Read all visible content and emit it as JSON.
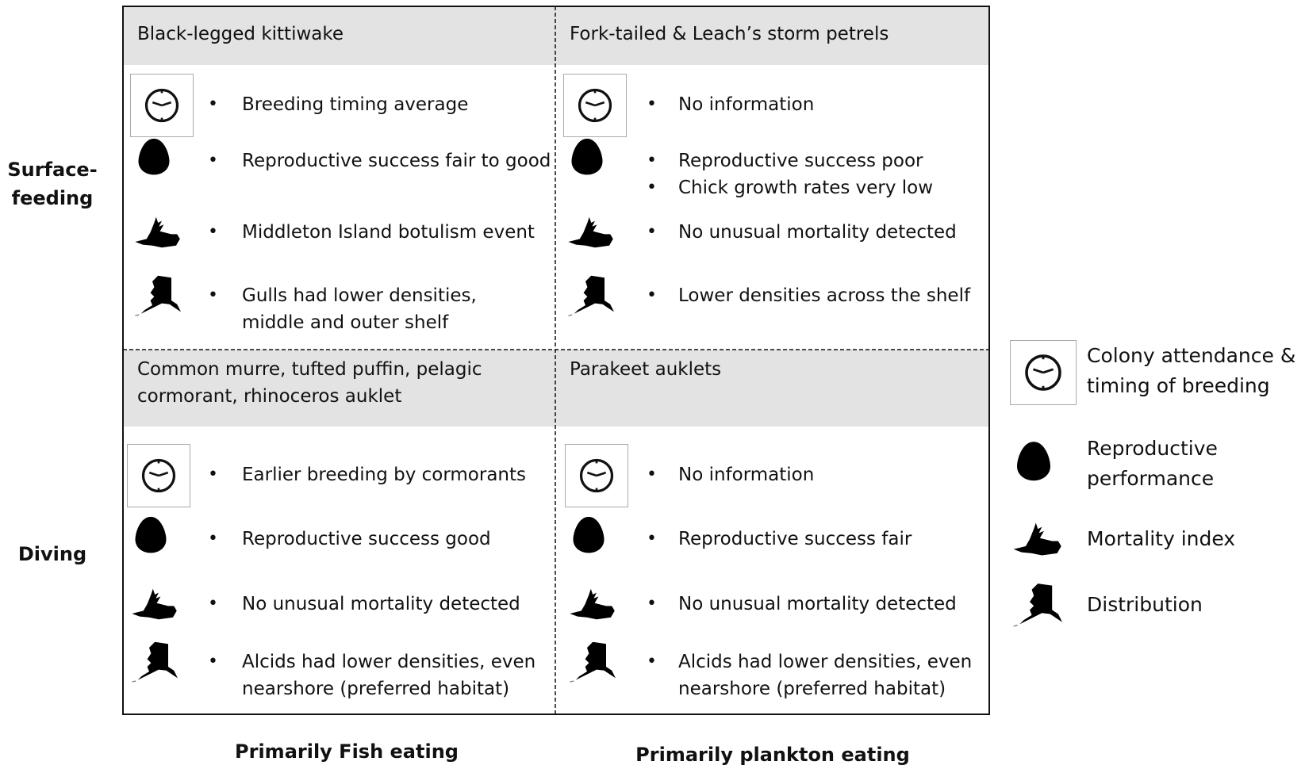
{
  "row_labels": [
    "Surface-\nfeeding",
    "Diving"
  ],
  "column_labels": [
    "Primarily Fish eating",
    "Primarily plankton eating"
  ],
  "cells": [
    {
      "title": "Black-legged kittiwake",
      "items": [
        [
          "Breeding timing average"
        ],
        [
          "Reproductive success fair to good"
        ],
        [
          "Middleton Island botulism event"
        ],
        [
          "Gulls had lower densities,\nmiddle and outer shelf"
        ]
      ]
    },
    {
      "title": "Fork-tailed & Leach’s storm petrels",
      "items": [
        [
          "No information"
        ],
        [
          "Reproductive success poor",
          "Chick growth rates very low"
        ],
        [
          "No unusual mortality detected"
        ],
        [
          "Lower densities across the shelf"
        ]
      ]
    },
    {
      "title": "Common murre, tufted puffin, pelagic\ncormorant, rhinoceros auklet",
      "items": [
        [
          "Earlier breeding by cormorants"
        ],
        [
          "Reproductive success good"
        ],
        [
          "No unusual mortality detected"
        ],
        [
          "Alcids had lower densities, even\nnearshore (preferred habitat)"
        ]
      ]
    },
    {
      "title": "Parakeet auklets",
      "items": [
        [
          "No information"
        ],
        [
          "Reproductive success fair"
        ],
        [
          "No unusual mortality detected"
        ],
        [
          "Alcids had lower densities, even\nnearshore (preferred habitat)"
        ]
      ]
    }
  ],
  "legend": [
    "Colony attendance &\ntiming of breeding",
    "Reproductive\nperformance",
    "Mortality index",
    "Distribution"
  ]
}
